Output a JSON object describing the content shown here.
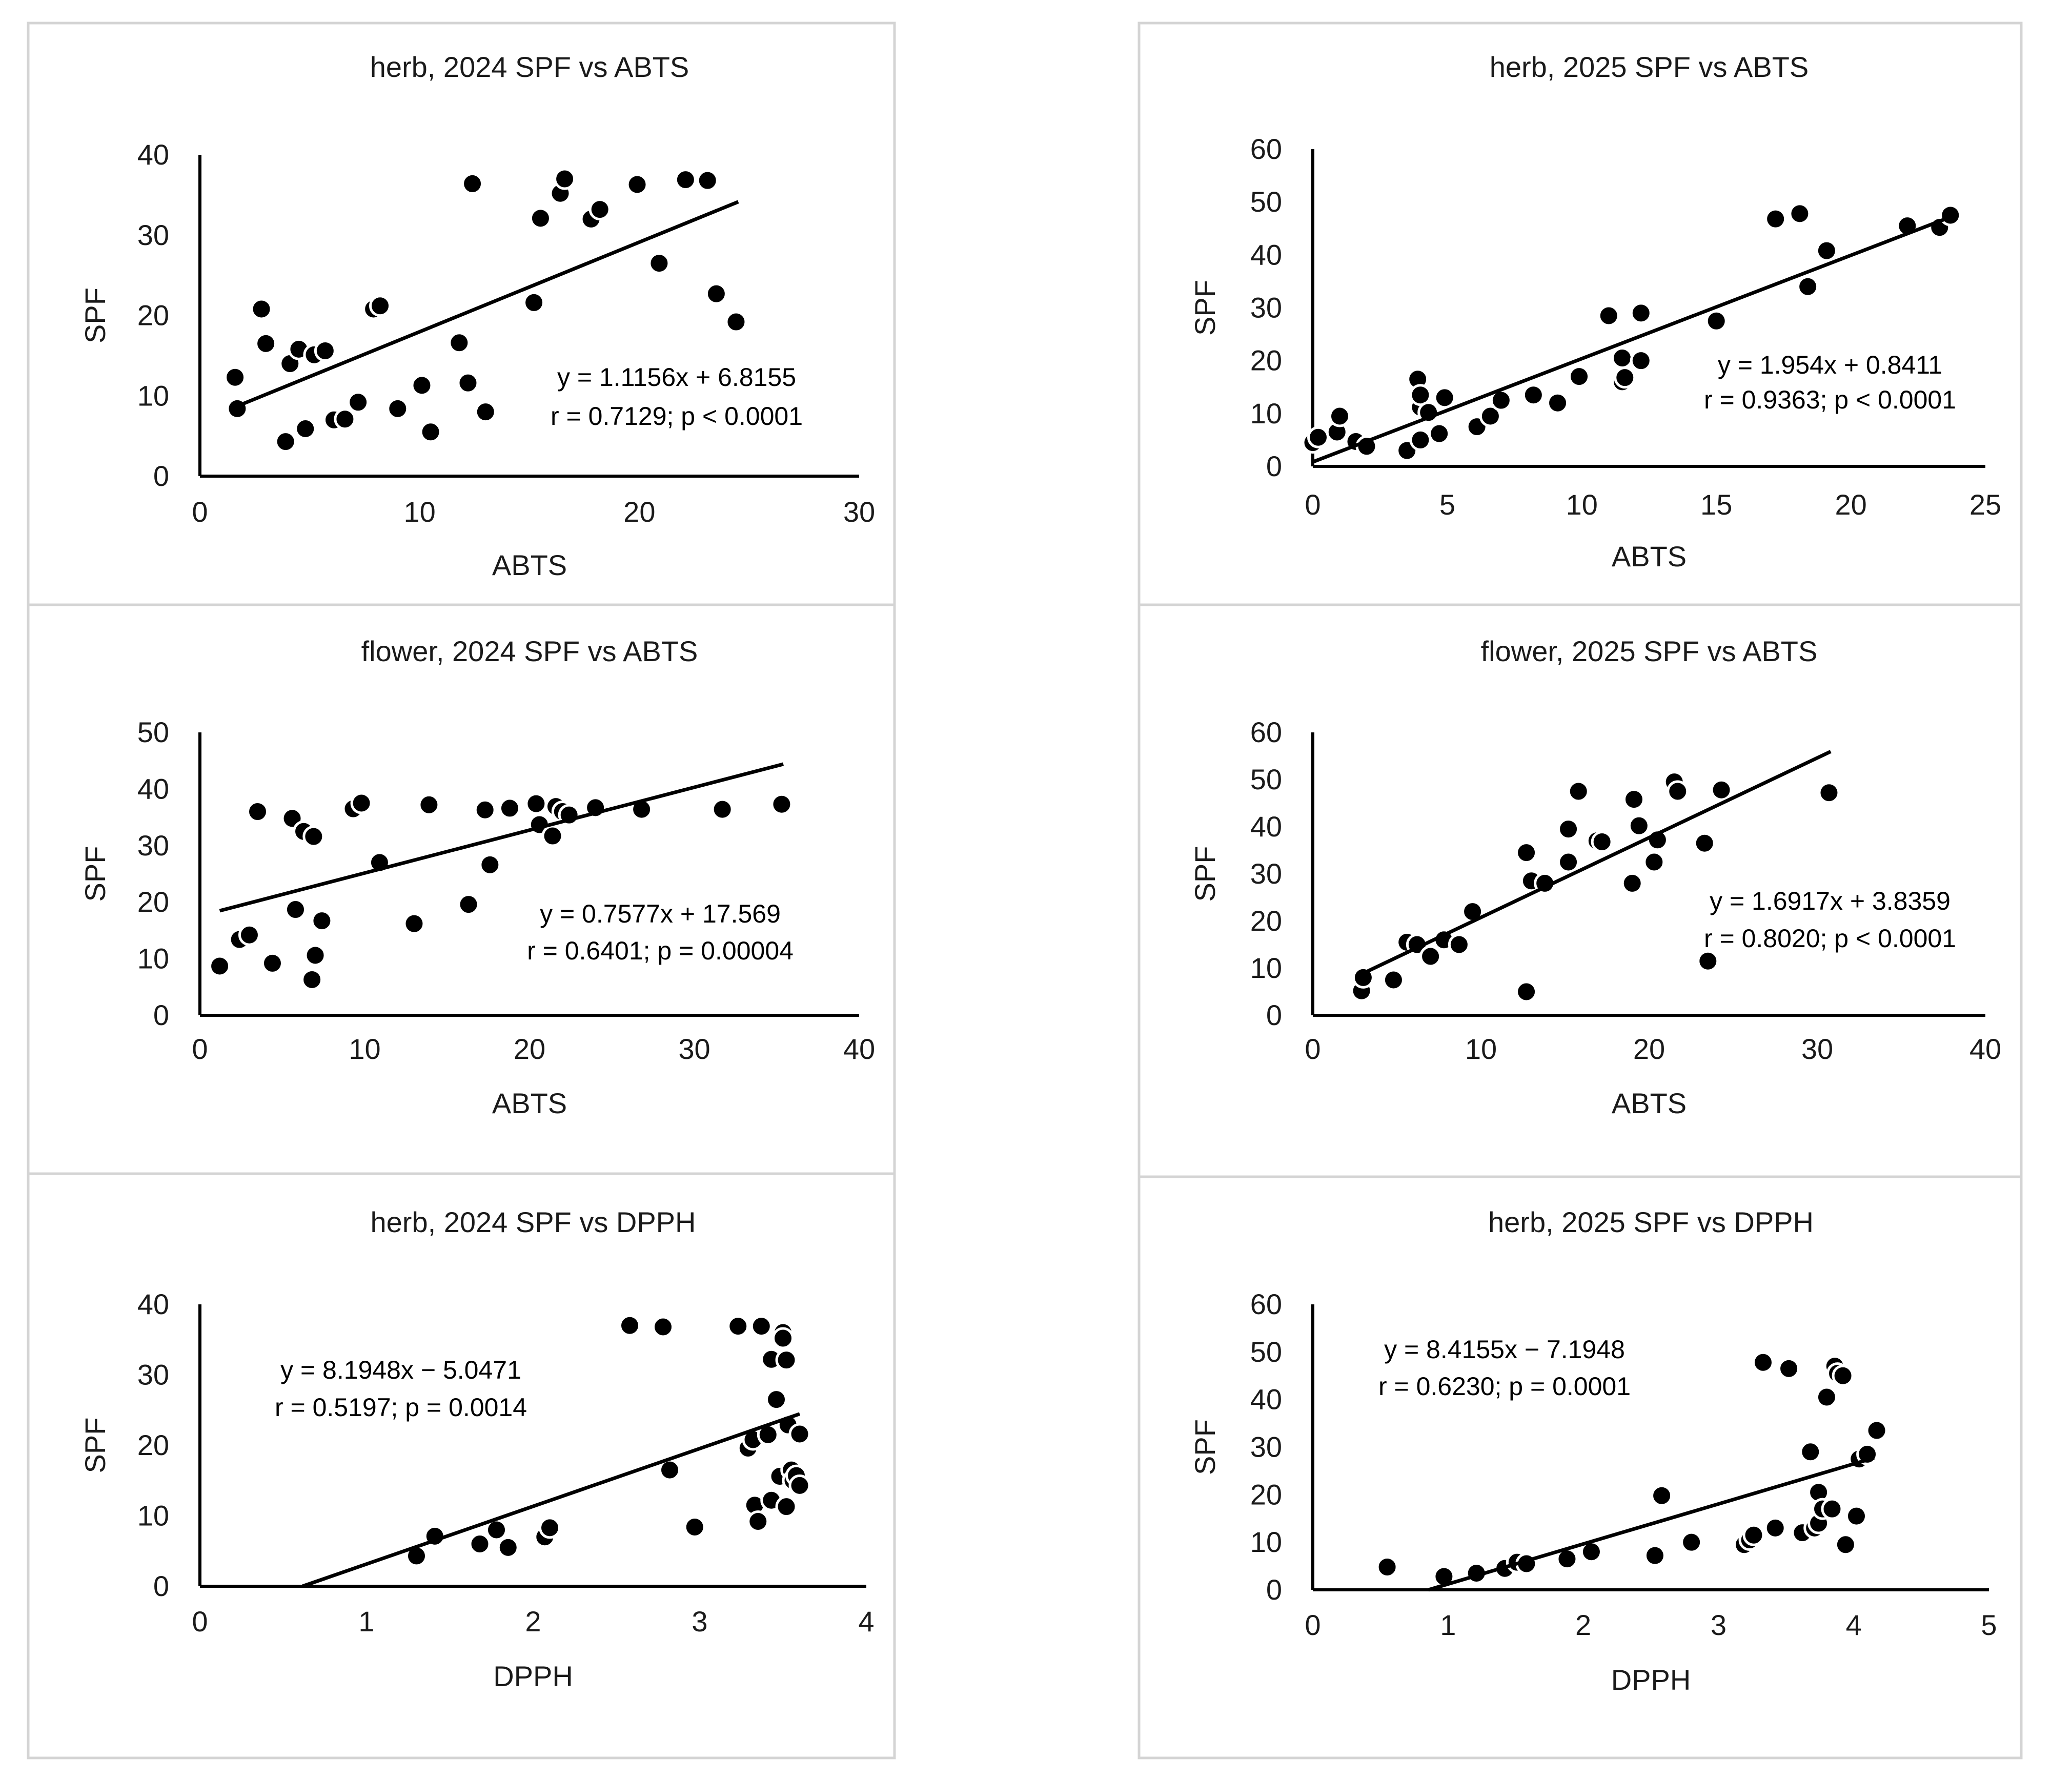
{
  "chart_data": [
    {
      "type": "scatter",
      "title": "herb, 2024 SPF vs ABTS",
      "xlabel": "ABTS",
      "ylabel": "SPF",
      "xlim": [
        0,
        30
      ],
      "ylim": [
        0,
        40
      ],
      "xticks": [
        0,
        10,
        20,
        30
      ],
      "yticks": [
        0,
        10,
        20,
        30,
        40
      ],
      "trendline": {
        "slope": 1.1156,
        "intercept": 6.8155,
        "x_range": [
          1.7,
          24.5
        ]
      },
      "annotations": [
        "y = 1.1156x + 6.8155",
        "r = 0.7129; p < 0.0001"
      ],
      "points": [
        [
          1.6,
          12.3
        ],
        [
          1.7,
          8.4
        ],
        [
          2.8,
          20.8
        ],
        [
          3.0,
          16.5
        ],
        [
          3.9,
          4.3
        ],
        [
          4.1,
          14.0
        ],
        [
          4.5,
          15.8
        ],
        [
          4.8,
          5.9
        ],
        [
          5.2,
          15.1
        ],
        [
          5.7,
          15.6
        ],
        [
          6.1,
          7.0
        ],
        [
          6.6,
          7.1
        ],
        [
          7.2,
          9.2
        ],
        [
          7.9,
          20.8
        ],
        [
          8.2,
          21.2
        ],
        [
          9.0,
          8.4
        ],
        [
          10.1,
          11.3
        ],
        [
          10.5,
          5.5
        ],
        [
          11.8,
          16.6
        ],
        [
          12.2,
          11.6
        ],
        [
          12.4,
          36.4
        ],
        [
          13.0,
          8.0
        ],
        [
          15.2,
          21.6
        ],
        [
          15.5,
          32.1
        ],
        [
          16.4,
          35.2
        ],
        [
          16.6,
          37.0
        ],
        [
          17.8,
          32.0
        ],
        [
          18.2,
          33.2
        ],
        [
          19.9,
          36.3
        ],
        [
          20.9,
          26.5
        ],
        [
          22.1,
          36.9
        ],
        [
          23.1,
          36.8
        ],
        [
          23.5,
          22.7
        ],
        [
          24.4,
          19.2
        ]
      ]
    },
    {
      "type": "scatter",
      "title": "herb, 2025 SPF vs ABTS",
      "xlabel": "ABTS",
      "ylabel": "SPF",
      "xlim": [
        0,
        25
      ],
      "ylim": [
        0,
        60
      ],
      "xticks": [
        0,
        5,
        10,
        15,
        20,
        25
      ],
      "yticks": [
        0,
        10,
        20,
        30,
        40,
        50,
        60
      ],
      "trendline": {
        "slope": 1.954,
        "intercept": 0.8411,
        "x_range": [
          0.0,
          23.6
        ]
      },
      "annotations": [
        "y = 1.954x + 0.8411",
        "r = 0.9363; p < 0.0001"
      ],
      "points": [
        [
          0.0,
          4.5
        ],
        [
          0.2,
          5.5
        ],
        [
          0.9,
          6.5
        ],
        [
          1.0,
          9.5
        ],
        [
          1.6,
          4.7
        ],
        [
          2.0,
          3.8
        ],
        [
          3.5,
          3.0
        ],
        [
          3.9,
          16.5
        ],
        [
          4.0,
          5.0
        ],
        [
          4.0,
          11.2
        ],
        [
          4.0,
          13.5
        ],
        [
          4.3,
          10.2
        ],
        [
          4.7,
          6.2
        ],
        [
          4.9,
          13.0
        ],
        [
          6.1,
          7.5
        ],
        [
          6.6,
          9.5
        ],
        [
          7.0,
          12.5
        ],
        [
          8.2,
          13.5
        ],
        [
          9.1,
          12.0
        ],
        [
          9.9,
          17.0
        ],
        [
          11.0,
          28.5
        ],
        [
          11.5,
          20.5
        ],
        [
          11.5,
          16.0
        ],
        [
          11.6,
          16.8
        ],
        [
          12.2,
          20.0
        ],
        [
          12.2,
          29.0
        ],
        [
          15.0,
          27.5
        ],
        [
          17.2,
          46.8
        ],
        [
          18.1,
          47.8
        ],
        [
          18.4,
          34.0
        ],
        [
          19.1,
          40.8
        ],
        [
          22.1,
          45.5
        ],
        [
          23.3,
          45.2
        ],
        [
          23.7,
          47.5
        ]
      ]
    },
    {
      "type": "scatter",
      "title": "flower, 2024 SPF vs ABTS",
      "xlabel": "ABTS",
      "ylabel": "SPF",
      "xlim": [
        0,
        40
      ],
      "ylim": [
        0,
        50
      ],
      "xticks": [
        0,
        10,
        20,
        30,
        40
      ],
      "yticks": [
        0,
        10,
        20,
        30,
        40,
        50
      ],
      "trendline": {
        "slope": 0.7577,
        "intercept": 17.569,
        "x_range": [
          1.2,
          35.4
        ]
      },
      "annotations": [
        "y = 0.7577x + 17.569",
        "r = 0.6401; p = 0.00004"
      ],
      "points": [
        [
          1.2,
          8.7
        ],
        [
          2.4,
          13.4
        ],
        [
          3.0,
          14.2
        ],
        [
          3.5,
          36.0
        ],
        [
          4.4,
          9.2
        ],
        [
          5.6,
          34.8
        ],
        [
          5.8,
          18.7
        ],
        [
          6.3,
          32.5
        ],
        [
          6.8,
          6.3
        ],
        [
          6.9,
          31.6
        ],
        [
          7.0,
          10.6
        ],
        [
          7.4,
          16.7
        ],
        [
          9.3,
          36.5
        ],
        [
          9.8,
          37.5
        ],
        [
          10.9,
          27.0
        ],
        [
          13.0,
          16.2
        ],
        [
          13.9,
          37.2
        ],
        [
          16.3,
          19.6
        ],
        [
          17.3,
          36.3
        ],
        [
          17.6,
          26.6
        ],
        [
          18.8,
          36.6
        ],
        [
          20.4,
          37.4
        ],
        [
          20.6,
          33.7
        ],
        [
          21.4,
          31.7
        ],
        [
          21.6,
          36.9
        ],
        [
          22.0,
          36.0
        ],
        [
          22.4,
          35.4
        ],
        [
          24.0,
          36.7
        ],
        [
          26.8,
          36.4
        ],
        [
          31.7,
          36.4
        ],
        [
          35.3,
          37.3
        ]
      ]
    },
    {
      "type": "scatter",
      "title": "flower, 2025 SPF vs ABTS",
      "xlabel": "ABTS",
      "ylabel": "SPF",
      "xlim": [
        0,
        40
      ],
      "ylim": [
        0,
        60
      ],
      "xticks": [
        0,
        10,
        20,
        30,
        40
      ],
      "yticks": [
        0,
        10,
        20,
        30,
        40,
        50,
        60
      ],
      "trendline": {
        "slope": 1.6917,
        "intercept": 3.8359,
        "x_range": [
          2.9,
          30.8
        ]
      },
      "annotations": [
        "y = 1.6917x + 3.8359",
        "r = 0.8020; p < 0.0001"
      ],
      "points": [
        [
          2.9,
          5.2
        ],
        [
          3.0,
          8.0
        ],
        [
          4.8,
          7.5
        ],
        [
          5.6,
          15.5
        ],
        [
          6.2,
          15.0
        ],
        [
          7.0,
          12.5
        ],
        [
          7.8,
          16.0
        ],
        [
          8.7,
          15.0
        ],
        [
          9.5,
          22.0
        ],
        [
          12.7,
          34.5
        ],
        [
          12.7,
          5.0
        ],
        [
          13.0,
          28.5
        ],
        [
          13.8,
          28.0
        ],
        [
          15.2,
          39.5
        ],
        [
          15.2,
          32.5
        ],
        [
          15.8,
          47.5
        ],
        [
          16.9,
          37.0
        ],
        [
          17.2,
          36.8
        ],
        [
          19.0,
          28.0
        ],
        [
          19.1,
          45.8
        ],
        [
          19.4,
          40.2
        ],
        [
          20.3,
          32.5
        ],
        [
          20.5,
          37.2
        ],
        [
          21.5,
          49.5
        ],
        [
          21.7,
          47.5
        ],
        [
          23.3,
          36.5
        ],
        [
          23.5,
          11.5
        ],
        [
          24.3,
          47.8
        ],
        [
          30.7,
          47.2
        ]
      ]
    },
    {
      "type": "scatter",
      "title": "herb, 2024 SPF vs DPPH",
      "xlabel": "DPPH",
      "ylabel": "SPF",
      "xlim": [
        0,
        4
      ],
      "ylim": [
        0,
        40
      ],
      "xticks": [
        0,
        1,
        2,
        3,
        4
      ],
      "yticks": [
        0,
        10,
        20,
        30,
        40
      ],
      "trendline": {
        "slope": 8.1948,
        "intercept": -5.0471,
        "x_range": [
          0.616,
          3.6
        ]
      },
      "annotations": [
        "y = 8.1948x − 5.0471",
        "r = 0.5197; p = 0.0014"
      ],
      "points": [
        [
          1.3,
          4.3
        ],
        [
          1.41,
          7.1
        ],
        [
          1.68,
          6.0
        ],
        [
          1.78,
          8.0
        ],
        [
          1.85,
          5.5
        ],
        [
          2.07,
          7.0
        ],
        [
          2.1,
          8.3
        ],
        [
          2.58,
          37.0
        ],
        [
          2.78,
          36.8
        ],
        [
          2.82,
          16.5
        ],
        [
          2.97,
          8.4
        ],
        [
          3.23,
          36.9
        ],
        [
          3.29,
          19.6
        ],
        [
          3.32,
          20.8
        ],
        [
          3.33,
          11.5
        ],
        [
          3.35,
          9.2
        ],
        [
          3.37,
          36.9
        ],
        [
          3.41,
          21.5
        ],
        [
          3.43,
          12.2
        ],
        [
          3.43,
          32.2
        ],
        [
          3.46,
          26.5
        ],
        [
          3.48,
          15.6
        ],
        [
          3.5,
          36.0
        ],
        [
          3.5,
          35.2
        ],
        [
          3.52,
          32.1
        ],
        [
          3.52,
          11.3
        ],
        [
          3.53,
          22.9
        ],
        [
          3.55,
          16.5
        ],
        [
          3.56,
          15.0
        ],
        [
          3.58,
          15.7
        ],
        [
          3.6,
          14.3
        ],
        [
          3.6,
          21.6
        ]
      ]
    },
    {
      "type": "scatter",
      "title": "herb, 2025 SPF vs DPPH",
      "xlabel": "DPPH",
      "ylabel": "SPF",
      "xlim": [
        0,
        5
      ],
      "ylim": [
        0,
        60
      ],
      "xticks": [
        0,
        1,
        2,
        3,
        4,
        5
      ],
      "yticks": [
        0,
        10,
        20,
        30,
        40,
        50,
        60
      ],
      "trendline": {
        "slope": 8.4155,
        "intercept": -7.1948,
        "x_range": [
          0.855,
          4.15
        ]
      },
      "annotations": [
        "y = 8.4155x − 7.1948",
        "r = 0.6230; p = 0.0001"
      ],
      "points": [
        [
          0.55,
          4.8
        ],
        [
          0.97,
          2.8
        ],
        [
          1.21,
          3.5
        ],
        [
          1.42,
          4.5
        ],
        [
          1.51,
          5.8
        ],
        [
          1.58,
          5.5
        ],
        [
          1.88,
          6.5
        ],
        [
          2.06,
          8.0
        ],
        [
          2.53,
          7.2
        ],
        [
          2.58,
          19.8
        ],
        [
          2.8,
          10.0
        ],
        [
          3.19,
          9.5
        ],
        [
          3.23,
          10.5
        ],
        [
          3.26,
          11.5
        ],
        [
          3.33,
          47.8
        ],
        [
          3.42,
          13.0
        ],
        [
          3.52,
          46.5
        ],
        [
          3.62,
          12.0
        ],
        [
          3.68,
          29.0
        ],
        [
          3.71,
          13.0
        ],
        [
          3.74,
          14.0
        ],
        [
          3.74,
          20.5
        ],
        [
          3.77,
          17.0
        ],
        [
          3.8,
          40.5
        ],
        [
          3.84,
          17.0
        ],
        [
          3.86,
          47.0
        ],
        [
          3.88,
          45.5
        ],
        [
          3.92,
          45.0
        ],
        [
          3.94,
          9.5
        ],
        [
          4.02,
          15.5
        ],
        [
          4.04,
          27.5
        ],
        [
          4.1,
          28.5
        ],
        [
          4.17,
          33.5
        ]
      ]
    }
  ]
}
